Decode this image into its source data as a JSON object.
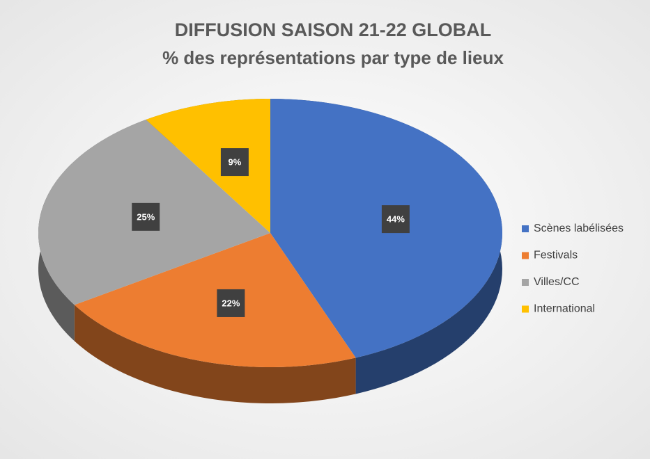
{
  "chart_data": {
    "type": "pie",
    "title": "DIFFUSION SAISON 21-22 GLOBAL",
    "subtitle": "% des représentations par type de lieux",
    "categories": [
      "Scènes labélisées",
      "Festivals",
      "Villes/CC",
      "International"
    ],
    "values": [
      44,
      22,
      25,
      9
    ],
    "value_labels": [
      "44%",
      "22%",
      "25%",
      "9%"
    ],
    "colors": [
      "#4472c4",
      "#ed7d31",
      "#a5a5a5",
      "#ffc000"
    ],
    "legend": "right"
  }
}
